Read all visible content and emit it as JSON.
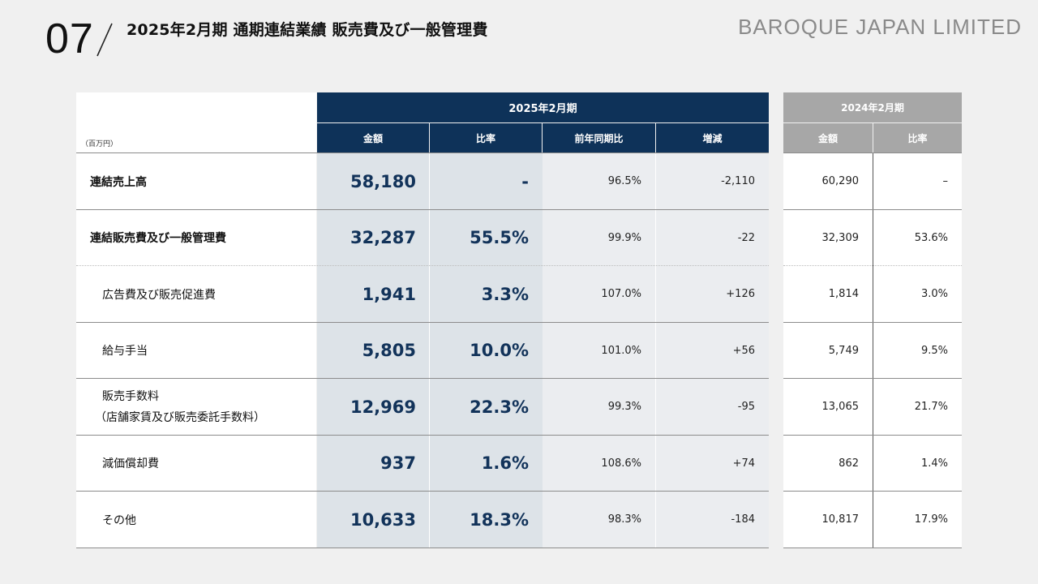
{
  "header": {
    "page_number": "07",
    "title": "2025年2月期 通期連結業績 販売費及び一般管理費",
    "brand": "BAROQUE JAPAN LIMITED"
  },
  "table": {
    "unit": "（百万円）",
    "period_current": "2025年2月期",
    "period_previous": "2024年2月期",
    "columns_current": [
      "金額",
      "比率",
      "前年同期比",
      "増減"
    ],
    "columns_previous": [
      "金額",
      "比率"
    ],
    "rows": [
      {
        "label": "連結売上高",
        "label2": "",
        "amount": "58,180",
        "ratio": "-",
        "yoy": "96.5%",
        "change": "-2,110",
        "prev_amount": "60,290",
        "prev_ratio": "–"
      },
      {
        "label": "連結販売費及び一般管理費",
        "label2": "",
        "amount": "32,287",
        "ratio": "55.5%",
        "yoy": "99.9%",
        "change": "-22",
        "prev_amount": "32,309",
        "prev_ratio": "53.6%"
      },
      {
        "label": "広告費及び販売促進費",
        "label2": "",
        "amount": "1,941",
        "ratio": "3.3%",
        "yoy": "107.0%",
        "change": "+126",
        "prev_amount": "1,814",
        "prev_ratio": "3.0%"
      },
      {
        "label": "給与手当",
        "label2": "",
        "amount": "5,805",
        "ratio": "10.0%",
        "yoy": "101.0%",
        "change": "+56",
        "prev_amount": "5,749",
        "prev_ratio": "9.5%"
      },
      {
        "label": "販売手数料",
        "label2": "（店舗家賃及び販売委託手数料）",
        "amount": "12,969",
        "ratio": "22.3%",
        "yoy": "99.3%",
        "change": "-95",
        "prev_amount": "13,065",
        "prev_ratio": "21.7%"
      },
      {
        "label": "減価償却費",
        "label2": "",
        "amount": "937",
        "ratio": "1.6%",
        "yoy": "108.6%",
        "change": "+74",
        "prev_amount": "862",
        "prev_ratio": "1.4%"
      },
      {
        "label": "その他",
        "label2": "",
        "amount": "10,633",
        "ratio": "18.3%",
        "yoy": "98.3%",
        "change": "-184",
        "prev_amount": "10,817",
        "prev_ratio": "17.9%"
      }
    ]
  },
  "colors": {
    "navy": "#0e3259",
    "gray_header": "#a7a7a7",
    "amount_col_bg": "#dde3e8",
    "other_col_bg": "#ebedf0"
  }
}
